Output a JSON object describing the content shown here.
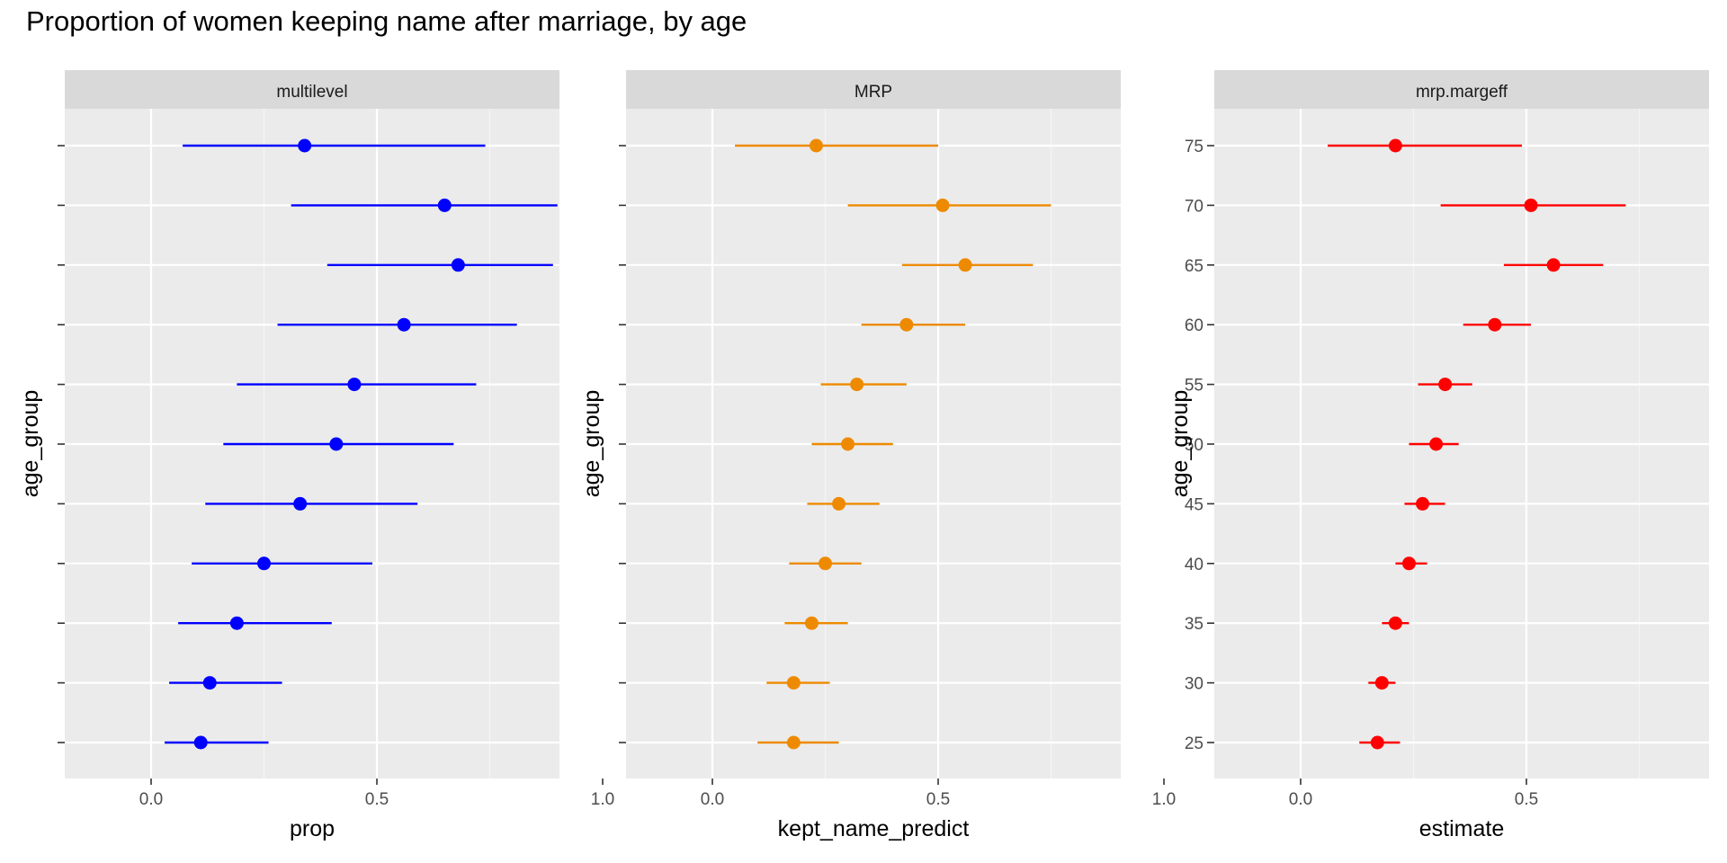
{
  "title": "Proportion of women keeping name after marriage, by age",
  "chart_data": [
    {
      "type": "scatter",
      "panel": "multilevel",
      "xlabel": "prop",
      "ylabel": "age_group",
      "xlim": [
        -0.04,
        1.05
      ],
      "x_ticks": [
        "0.0",
        "0.5",
        "1.0"
      ],
      "y_tick_labels_shown": false,
      "categories": [
        "25",
        "30",
        "35",
        "40",
        "45",
        "50",
        "55",
        "60",
        "65",
        "70",
        "75"
      ],
      "estimate": [
        0.11,
        0.13,
        0.19,
        0.25,
        0.33,
        0.41,
        0.45,
        0.56,
        0.68,
        0.65,
        0.34
      ],
      "lower": [
        0.03,
        0.04,
        0.06,
        0.09,
        0.12,
        0.16,
        0.19,
        0.28,
        0.39,
        0.31,
        0.07
      ],
      "upper": [
        0.26,
        0.29,
        0.4,
        0.49,
        0.59,
        0.67,
        0.72,
        0.81,
        0.89,
        0.9,
        0.74
      ],
      "color": "#0000ff",
      "grid": true
    },
    {
      "type": "scatter",
      "panel": "MRP",
      "xlabel": "kept_name_predict",
      "ylabel": "age_group",
      "xlim": [
        -0.04,
        1.05
      ],
      "x_ticks": [
        "0.0",
        "0.5",
        "1.0"
      ],
      "y_tick_labels_shown": false,
      "categories": [
        "25",
        "30",
        "35",
        "40",
        "45",
        "50",
        "55",
        "60",
        "65",
        "70",
        "75"
      ],
      "estimate": [
        0.18,
        0.18,
        0.22,
        0.25,
        0.28,
        0.3,
        0.32,
        0.43,
        0.56,
        0.51,
        0.23
      ],
      "lower": [
        0.1,
        0.12,
        0.16,
        0.17,
        0.21,
        0.22,
        0.24,
        0.33,
        0.42,
        0.3,
        0.05
      ],
      "upper": [
        0.28,
        0.26,
        0.3,
        0.33,
        0.37,
        0.4,
        0.43,
        0.56,
        0.71,
        0.75,
        0.5
      ],
      "color": "#ee8a00",
      "grid": true
    },
    {
      "type": "scatter",
      "panel": "mrp.margeff",
      "xlabel": "estimate",
      "ylabel": "age_group",
      "xlim": [
        -0.04,
        1.05
      ],
      "x_ticks": [
        "0.0",
        "0.5",
        "1.0"
      ],
      "y_tick_labels_shown": true,
      "categories": [
        "25",
        "30",
        "35",
        "40",
        "45",
        "50",
        "55",
        "60",
        "65",
        "70",
        "75"
      ],
      "estimate": [
        0.17,
        0.18,
        0.21,
        0.24,
        0.27,
        0.3,
        0.32,
        0.43,
        0.56,
        0.51,
        0.21
      ],
      "lower": [
        0.13,
        0.15,
        0.18,
        0.21,
        0.23,
        0.24,
        0.26,
        0.36,
        0.45,
        0.31,
        0.06
      ],
      "upper": [
        0.22,
        0.21,
        0.24,
        0.28,
        0.32,
        0.35,
        0.38,
        0.51,
        0.67,
        0.72,
        0.49
      ],
      "color": "#ff0000",
      "grid": true
    }
  ]
}
